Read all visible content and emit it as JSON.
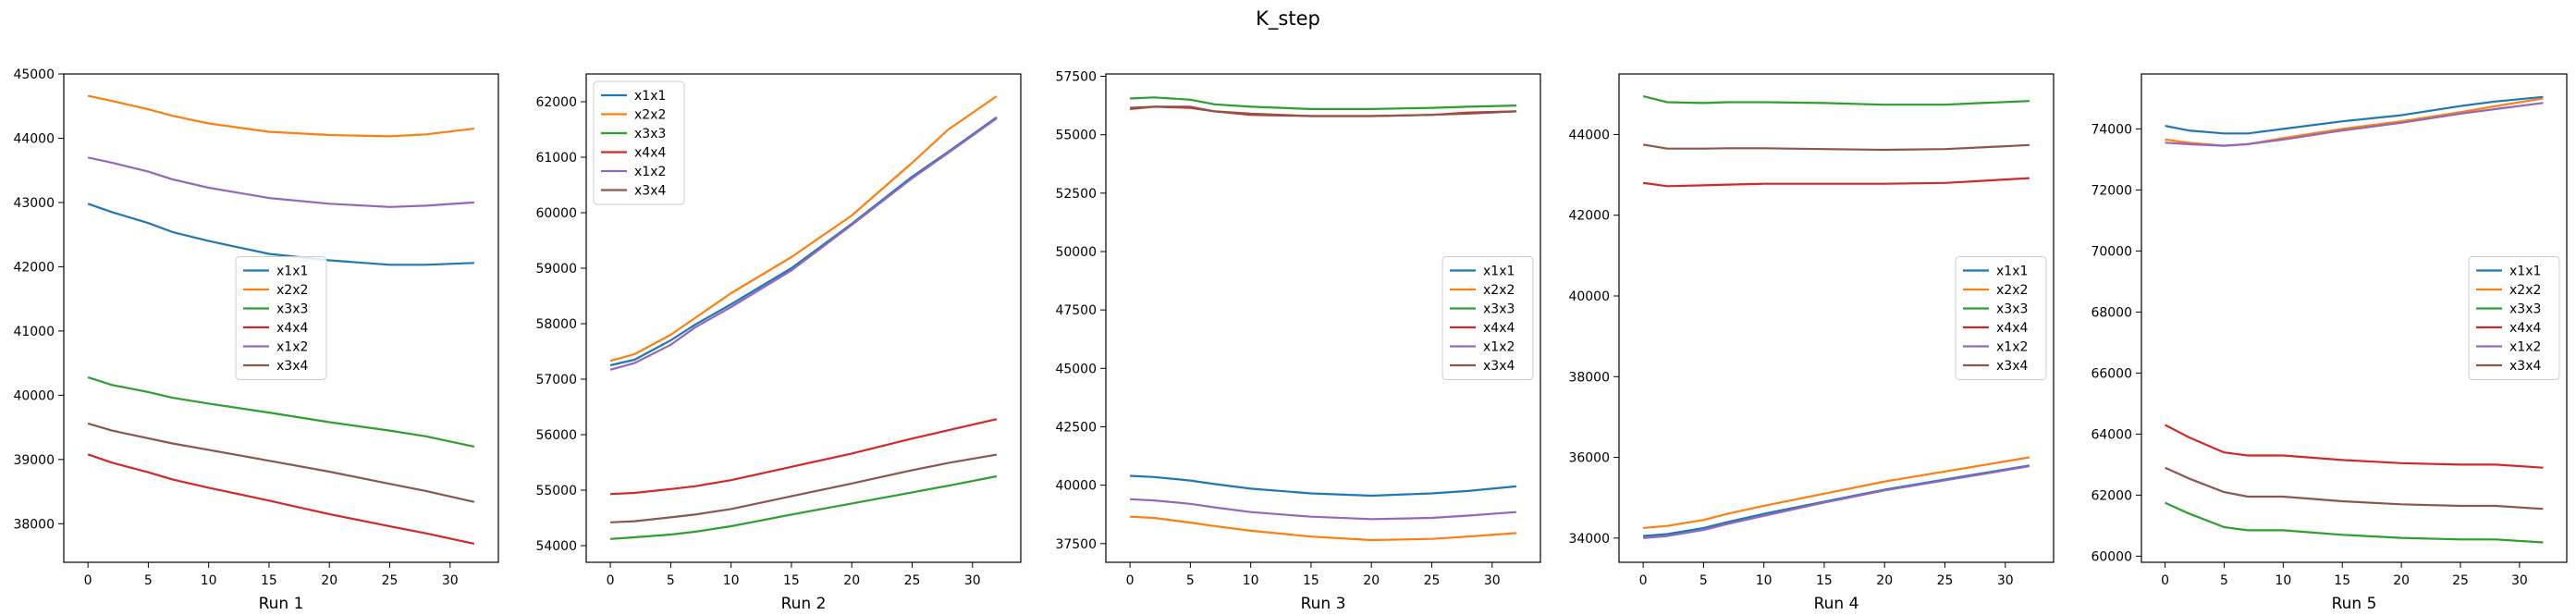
{
  "figure": {
    "title": "K_step"
  },
  "colors": {
    "x1x1": "#1f77b4",
    "x2x2": "#ff7f0e",
    "x3x3": "#2ca02c",
    "x4x4": "#d62728",
    "x1x2": "#9467bd",
    "x3x4": "#8c564b"
  },
  "chart_data": [
    {
      "type": "line",
      "xlabel": "Run 1",
      "legend": "center",
      "xlim": [
        -2,
        34
      ],
      "ylim": [
        37400,
        45000
      ],
      "xticks": [
        0,
        5,
        10,
        15,
        20,
        25,
        30
      ],
      "yticks": [
        38000,
        39000,
        40000,
        41000,
        42000,
        43000,
        44000,
        45000
      ],
      "x": [
        0,
        2,
        5,
        7,
        10,
        15,
        20,
        25,
        28,
        32
      ],
      "series": [
        {
          "name": "x1x1",
          "values": [
            42980,
            42850,
            42680,
            42540,
            42400,
            42200,
            42100,
            42030,
            42030,
            42060
          ]
        },
        {
          "name": "x2x2",
          "values": [
            44660,
            44580,
            44450,
            44350,
            44230,
            44100,
            44050,
            44030,
            44060,
            44150
          ]
        },
        {
          "name": "x3x3",
          "values": [
            40280,
            40160,
            40050,
            39960,
            39870,
            39730,
            39580,
            39450,
            39360,
            39200
          ]
        },
        {
          "name": "x4x4",
          "values": [
            39080,
            38950,
            38800,
            38690,
            38560,
            38360,
            38150,
            37960,
            37850,
            37690
          ]
        },
        {
          "name": "x1x2",
          "values": [
            43700,
            43620,
            43480,
            43360,
            43230,
            43070,
            42980,
            42930,
            42950,
            43000
          ]
        },
        {
          "name": "x3x4",
          "values": [
            39560,
            39450,
            39330,
            39250,
            39150,
            38980,
            38810,
            38620,
            38510,
            38340
          ]
        }
      ]
    },
    {
      "type": "line",
      "xlabel": "Run 2",
      "legend": "upper left",
      "xlim": [
        -2,
        34
      ],
      "ylim": [
        53700,
        62500
      ],
      "xticks": [
        0,
        5,
        10,
        15,
        20,
        25,
        30
      ],
      "yticks": [
        54000,
        55000,
        56000,
        57000,
        58000,
        59000,
        60000,
        61000,
        62000
      ],
      "x": [
        0,
        2,
        5,
        7,
        10,
        15,
        20,
        25,
        28,
        32
      ],
      "series": [
        {
          "name": "x1x1",
          "values": [
            57250,
            57350,
            57700,
            57980,
            58350,
            59000,
            59800,
            60650,
            61100,
            61720
          ]
        },
        {
          "name": "x2x2",
          "values": [
            57330,
            57450,
            57800,
            58100,
            58550,
            59200,
            59950,
            60900,
            61500,
            62100
          ]
        },
        {
          "name": "x3x3",
          "values": [
            54120,
            54150,
            54200,
            54250,
            54350,
            54560,
            54760,
            54960,
            55080,
            55250
          ]
        },
        {
          "name": "x4x4",
          "values": [
            54930,
            54950,
            55020,
            55070,
            55180,
            55420,
            55660,
            55930,
            56080,
            56280
          ]
        },
        {
          "name": "x1x2",
          "values": [
            57170,
            57290,
            57620,
            57930,
            58300,
            58960,
            59780,
            60620,
            61080,
            61700
          ]
        },
        {
          "name": "x3x4",
          "values": [
            54420,
            54440,
            54510,
            54560,
            54660,
            54890,
            55120,
            55360,
            55490,
            55640
          ]
        }
      ]
    },
    {
      "type": "line",
      "xlabel": "Run 3",
      "legend": "center right",
      "xlim": [
        -2,
        34
      ],
      "ylim": [
        36700,
        57600
      ],
      "xticks": [
        0,
        5,
        10,
        15,
        20,
        25,
        30
      ],
      "yticks": [
        37500,
        40000,
        42500,
        45000,
        47500,
        50000,
        52500,
        55000,
        57500
      ],
      "x": [
        0,
        2,
        5,
        7,
        10,
        15,
        20,
        25,
        28,
        32
      ],
      "series": [
        {
          "name": "x1x1",
          "values": [
            40400,
            40350,
            40200,
            40050,
            39850,
            39650,
            39550,
            39650,
            39750,
            39950
          ]
        },
        {
          "name": "x2x2",
          "values": [
            38650,
            38600,
            38400,
            38250,
            38050,
            37800,
            37650,
            37700,
            37800,
            37950
          ]
        },
        {
          "name": "x3x3",
          "values": [
            56550,
            56600,
            56500,
            56300,
            56200,
            56100,
            56100,
            56150,
            56200,
            56250
          ]
        },
        {
          "name": "x4x4",
          "values": [
            56100,
            56200,
            56150,
            56000,
            55850,
            55800,
            55800,
            55850,
            55950,
            56000
          ]
        },
        {
          "name": "x1x2",
          "values": [
            39400,
            39350,
            39200,
            39050,
            38850,
            38650,
            38550,
            38600,
            38700,
            38850
          ]
        },
        {
          "name": "x3x4",
          "values": [
            56150,
            56200,
            56200,
            56000,
            55900,
            55800,
            55800,
            55850,
            55900,
            56000
          ]
        }
      ]
    },
    {
      "type": "line",
      "xlabel": "Run 4",
      "legend": "center right",
      "xlim": [
        -2,
        34
      ],
      "ylim": [
        33400,
        45500
      ],
      "xticks": [
        0,
        5,
        10,
        15,
        20,
        25,
        30
      ],
      "yticks": [
        34000,
        36000,
        38000,
        40000,
        42000,
        44000
      ],
      "x": [
        0,
        2,
        5,
        7,
        10,
        15,
        20,
        25,
        28,
        32
      ],
      "series": [
        {
          "name": "x1x1",
          "values": [
            34050,
            34100,
            34250,
            34400,
            34600,
            34900,
            35200,
            35450,
            35600,
            35800
          ]
        },
        {
          "name": "x2x2",
          "values": [
            34250,
            34300,
            34450,
            34600,
            34800,
            35100,
            35400,
            35650,
            35800,
            36000
          ]
        },
        {
          "name": "x3x3",
          "values": [
            44950,
            44800,
            44780,
            44800,
            44800,
            44780,
            44740,
            44740,
            44780,
            44830
          ]
        },
        {
          "name": "x4x4",
          "values": [
            42800,
            42720,
            42740,
            42760,
            42780,
            42780,
            42780,
            42800,
            42850,
            42920
          ]
        },
        {
          "name": "x1x2",
          "values": [
            34000,
            34050,
            34200,
            34350,
            34550,
            34880,
            35180,
            35430,
            35580,
            35780
          ]
        },
        {
          "name": "x3x4",
          "values": [
            43750,
            43650,
            43650,
            43660,
            43660,
            43640,
            43620,
            43640,
            43680,
            43740
          ]
        }
      ]
    },
    {
      "type": "line",
      "xlabel": "Run 5",
      "legend": "center right",
      "xlim": [
        -2,
        34
      ],
      "ylim": [
        59800,
        75800
      ],
      "xticks": [
        0,
        5,
        10,
        15,
        20,
        25,
        30
      ],
      "yticks": [
        60000,
        62000,
        64000,
        66000,
        68000,
        70000,
        72000,
        74000
      ],
      "x": [
        0,
        2,
        5,
        7,
        10,
        15,
        20,
        25,
        28,
        32
      ],
      "series": [
        {
          "name": "x1x1",
          "values": [
            74100,
            73950,
            73850,
            73850,
            74000,
            74250,
            74450,
            74750,
            74900,
            75050
          ]
        },
        {
          "name": "x2x2",
          "values": [
            73650,
            73550,
            73450,
            73500,
            73700,
            74000,
            74250,
            74550,
            74750,
            75000
          ]
        },
        {
          "name": "x3x3",
          "values": [
            61750,
            61400,
            60950,
            60850,
            60850,
            60700,
            60600,
            60550,
            60550,
            60450
          ]
        },
        {
          "name": "x4x4",
          "values": [
            64300,
            63900,
            63400,
            63300,
            63300,
            63150,
            63050,
            63000,
            63000,
            62900
          ]
        },
        {
          "name": "x1x2",
          "values": [
            73550,
            73500,
            73450,
            73500,
            73650,
            73950,
            74200,
            74500,
            74650,
            74850
          ]
        },
        {
          "name": "x3x4",
          "values": [
            62900,
            62550,
            62100,
            61950,
            61950,
            61800,
            61700,
            61650,
            61650,
            61550
          ]
        }
      ]
    }
  ]
}
